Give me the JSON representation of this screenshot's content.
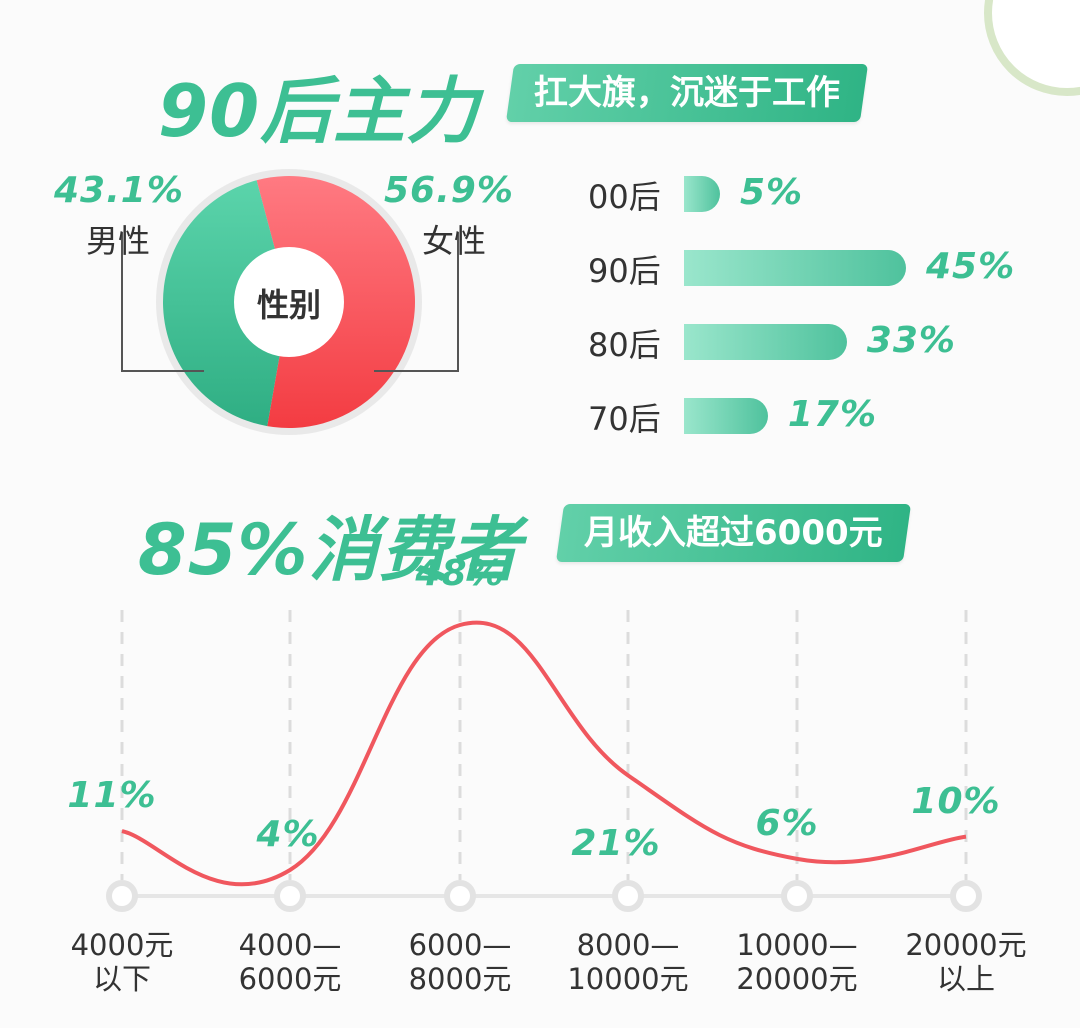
{
  "header1": {
    "title": "90后主力",
    "tag": "扛大旗，沉迷于工作"
  },
  "header2": {
    "title": "85%消费者",
    "tag": "月收入超过6000元"
  },
  "gender": {
    "center_label": "性别",
    "male": {
      "pct": "43.1%",
      "label": "男性",
      "value": 43.1
    },
    "female": {
      "pct": "56.9%",
      "label": "女性",
      "value": 56.9
    }
  },
  "colors": {
    "green": "#3dbf93",
    "red": "#f0575e",
    "bar": "#5ccaa5"
  },
  "chart_data": [
    {
      "type": "pie",
      "categories": [
        "男性",
        "女性"
      ],
      "values": [
        43.1,
        56.9
      ],
      "title": "性别"
    },
    {
      "type": "bar",
      "categories": [
        "00后",
        "90后",
        "80后",
        "70后"
      ],
      "values": [
        5,
        45,
        33,
        17
      ],
      "labels": [
        "5%",
        "45%",
        "33%",
        "17%"
      ]
    },
    {
      "type": "line",
      "categories": [
        "4000元\n以下",
        "4000—\n6000元",
        "6000—\n8000元",
        "8000—\n10000元",
        "10000—\n20000元",
        "20000元\n以上"
      ],
      "values": [
        11,
        4,
        48,
        21,
        6,
        10
      ],
      "labels": [
        "11%",
        "4%",
        "48%",
        "21%",
        "6%",
        "10%"
      ]
    }
  ]
}
